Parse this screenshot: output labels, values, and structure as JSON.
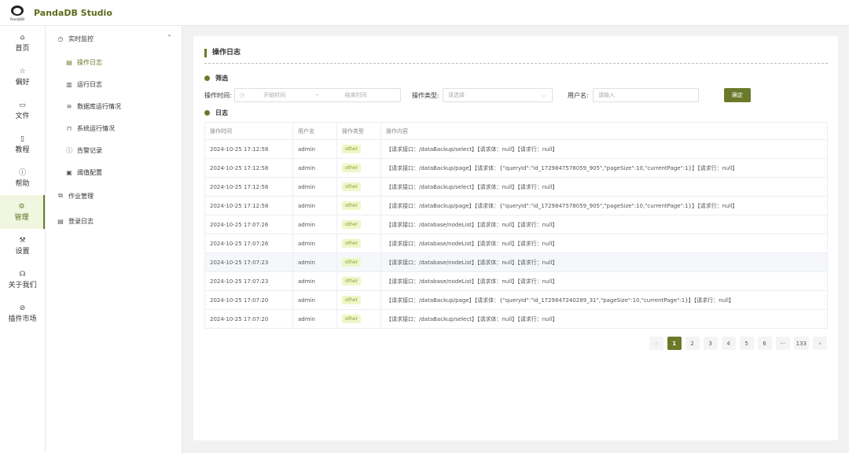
{
  "app": {
    "title": "PandaDB Studio",
    "logo_text": "PandaDB"
  },
  "rail": [
    {
      "icon": "home-icon",
      "glyph": "⌂",
      "label": "首页"
    },
    {
      "icon": "star-icon",
      "glyph": "☆",
      "label": "偏好"
    },
    {
      "icon": "folder-icon",
      "glyph": "▭",
      "label": "文件"
    },
    {
      "icon": "book-icon",
      "glyph": "▯",
      "label": "教程"
    },
    {
      "icon": "info-icon",
      "glyph": "ⓘ",
      "label": "帮助"
    },
    {
      "icon": "gear-icon",
      "glyph": "⚙",
      "label": "管理"
    },
    {
      "icon": "wrench-icon",
      "glyph": "⚒",
      "label": "设置"
    },
    {
      "icon": "headphones-icon",
      "glyph": "☊",
      "label": "关于我们"
    },
    {
      "icon": "compass-icon",
      "glyph": "⊘",
      "label": "插件市场"
    }
  ],
  "submenu": {
    "group": {
      "icon": "gauge-icon",
      "label": "实时监控"
    },
    "children": [
      {
        "icon": "document-icon",
        "glyph": "▤",
        "label": "操作日志"
      },
      {
        "icon": "log-icon",
        "glyph": "▥",
        "label": "运行日志"
      },
      {
        "icon": "database-icon",
        "glyph": "≋",
        "label": "数据库运行情况"
      },
      {
        "icon": "monitor-icon",
        "glyph": "⊓",
        "label": "系统运行情况"
      },
      {
        "icon": "alert-icon",
        "glyph": "ⓘ",
        "label": "告警记录"
      },
      {
        "icon": "threshold-icon",
        "glyph": "▣",
        "label": "阈值配置"
      }
    ],
    "items": [
      {
        "icon": "jobs-icon",
        "glyph": "⧉",
        "label": "作业管理"
      },
      {
        "icon": "login-log-icon",
        "glyph": "▤",
        "label": "登录日志"
      }
    ]
  },
  "page": {
    "title": "操作日志",
    "filter_section": "筛选",
    "log_section": "日志"
  },
  "filters": {
    "time_label": "操作时间:",
    "start_placeholder": "开始时间",
    "separator": "-",
    "end_placeholder": "结束时间",
    "type_label": "操作类型:",
    "type_placeholder": "请选择",
    "user_label": "用户名:",
    "user_placeholder": "请输入",
    "confirm": "确定"
  },
  "table": {
    "headers": [
      "操作时间",
      "用户名",
      "操作类型",
      "操作内容"
    ],
    "rows": [
      [
        "2024-10-25 17:12:58",
        "admin",
        "other",
        "【请求接口：/dataBackup/select】【请求体：null】【请求行：null】"
      ],
      [
        "2024-10-25 17:12:58",
        "admin",
        "other",
        "【请求接口：/dataBackup/page】【请求体：{\"queryId\":\"id_1729847578059_905\",\"pageSize\":10,\"currentPage\":1}】【请求行：null】"
      ],
      [
        "2024-10-25 17:12:58",
        "admin",
        "other",
        "【请求接口：/dataBackup/select】【请求体：null】【请求行：null】"
      ],
      [
        "2024-10-25 17:12:58",
        "admin",
        "other",
        "【请求接口：/dataBackup/page】【请求体：{\"queryId\":\"id_1729847578059_905\",\"pageSize\":10,\"currentPage\":1}】【请求行：null】"
      ],
      [
        "2024-10-25 17:07:26",
        "admin",
        "other",
        "【请求接口：/database/nodeList】【请求体：null】【请求行：null】"
      ],
      [
        "2024-10-25 17:07:26",
        "admin",
        "other",
        "【请求接口：/database/nodeList】【请求体：null】【请求行：null】"
      ],
      [
        "2024-10-25 17:07:23",
        "admin",
        "other",
        "【请求接口：/database/nodeList】【请求体：null】【请求行：null】"
      ],
      [
        "2024-10-25 17:07:23",
        "admin",
        "other",
        "【请求接口：/database/nodeList】【请求体：null】【请求行：null】"
      ],
      [
        "2024-10-25 17:07:20",
        "admin",
        "other",
        "【请求接口：/dataBackup/page】【请求体：{\"queryId\":\"id_1729847240289_31\",\"pageSize\":10,\"currentPage\":1}】【请求行：null】"
      ],
      [
        "2024-10-25 17:07:20",
        "admin",
        "other",
        "【请求接口：/dataBackup/select】【请求体：null】【请求行：null】"
      ]
    ]
  },
  "pagination": {
    "prev": "‹",
    "pages": [
      "1",
      "2",
      "3",
      "4",
      "5",
      "6",
      "···",
      "133"
    ],
    "next": "›",
    "current": "1"
  }
}
